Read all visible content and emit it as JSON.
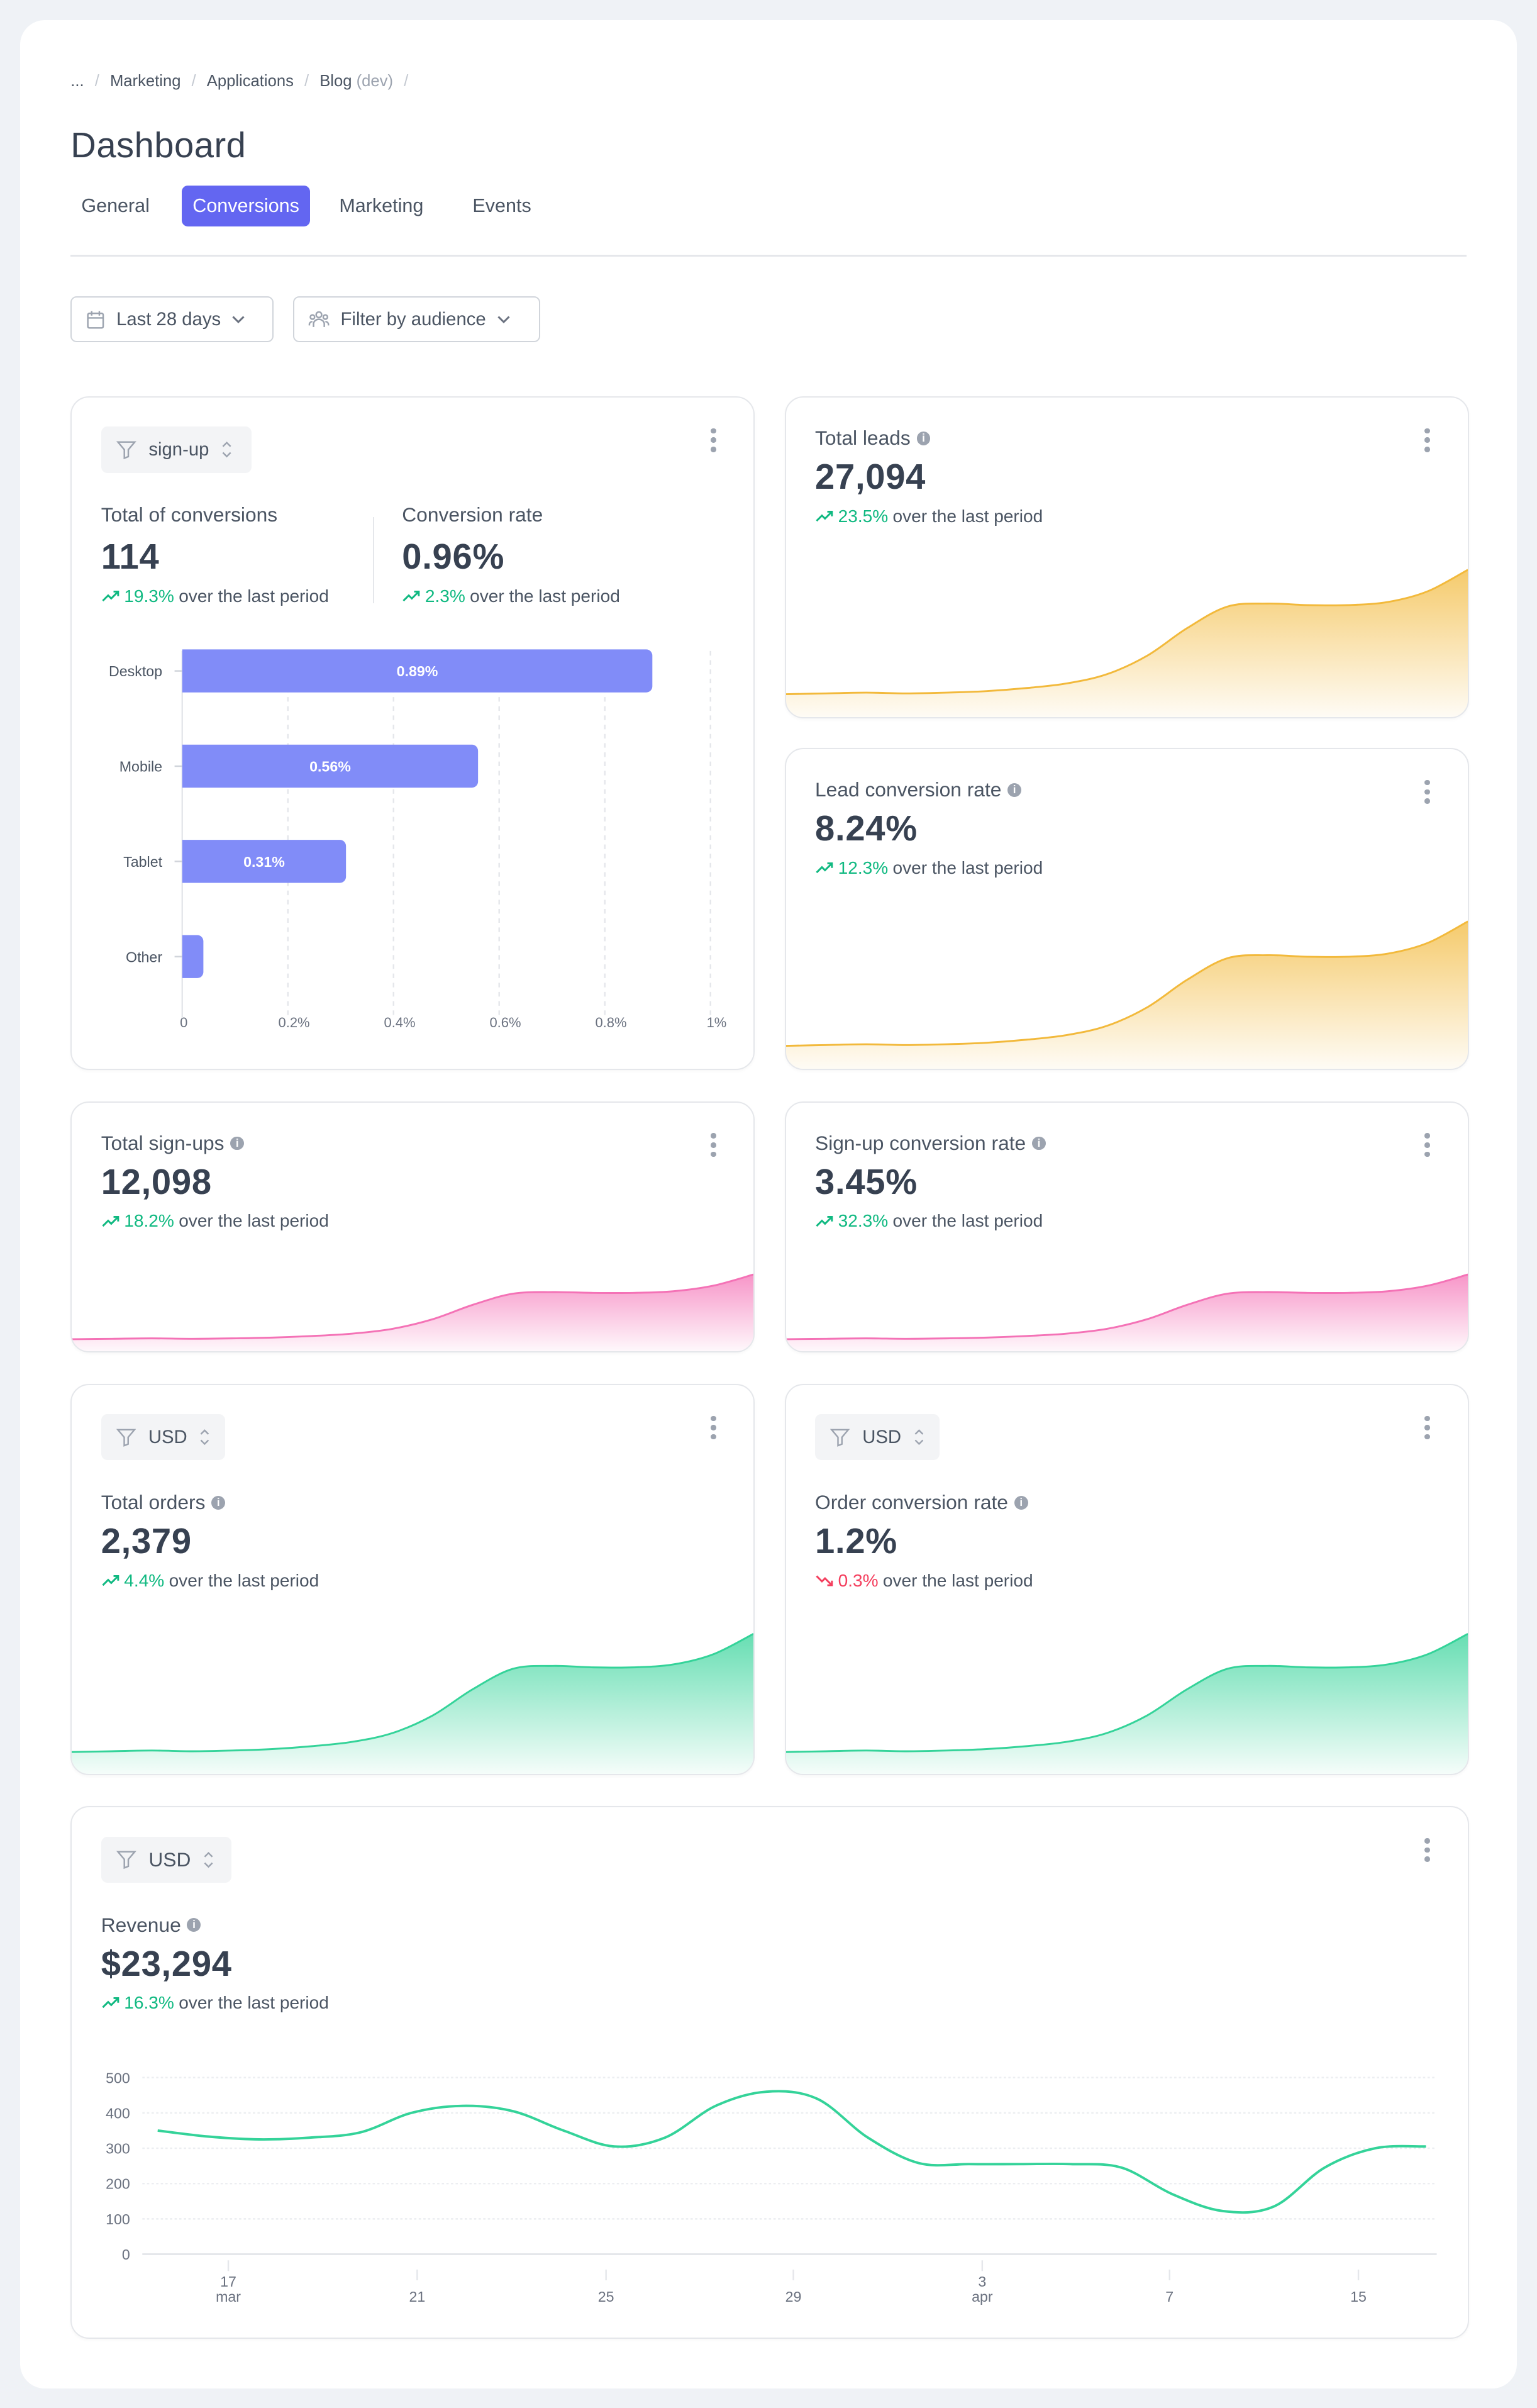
{
  "breadcrumb": {
    "items": [
      "...",
      "Marketing",
      "Applications",
      "Blog"
    ],
    "suffix": "(dev)"
  },
  "page_title": "Dashboard",
  "tabs": [
    {
      "label": "General"
    },
    {
      "label": "Conversions",
      "active": true
    },
    {
      "label": "Marketing"
    },
    {
      "label": "Events"
    }
  ],
  "filters": {
    "date_range": "Last 28 days",
    "audience": "Filter by audience"
  },
  "colors": {
    "accent": "#6366f1",
    "bar": "#818cf8",
    "positive": "#10b981",
    "negative": "#f43f5e",
    "yellow": "#f5c04a",
    "pink": "#f472b6",
    "green": "#34d399"
  },
  "conversions_card": {
    "filter": "sign-up",
    "total": {
      "label": "Total of conversions",
      "value": "114",
      "delta": "19.3%",
      "delta_text": "over the last period"
    },
    "rate": {
      "label": "Conversion rate",
      "value": "0.96%",
      "delta": "2.3%",
      "delta_text": "over the last period"
    }
  },
  "metrics": {
    "leads": {
      "label": "Total leads",
      "value": "27,094",
      "delta": "23.5%",
      "delta_text": "over the last period",
      "trend": "up"
    },
    "lead_rate": {
      "label": "Lead conversion rate",
      "value": "8.24%",
      "delta": "12.3%",
      "delta_text": "over the last period",
      "trend": "up"
    },
    "signups": {
      "label": "Total sign-ups",
      "value": "12,098",
      "delta": "18.2%",
      "delta_text": "over the last period",
      "trend": "up"
    },
    "signup_rate": {
      "label": "Sign-up conversion rate",
      "value": "3.45%",
      "delta": "32.3%",
      "delta_text": "over the last period",
      "trend": "up"
    },
    "orders": {
      "filter": "USD",
      "label": "Total orders",
      "value": "2,379",
      "delta": "4.4%",
      "delta_text": "over the last period",
      "trend": "up"
    },
    "order_rate": {
      "filter": "USD",
      "label": "Order conversion rate",
      "value": "1.2%",
      "delta": "0.3%",
      "delta_text": "over the last period",
      "trend": "down"
    },
    "revenue": {
      "filter": "USD",
      "label": "Revenue",
      "value": "$23,294",
      "delta": "16.3%",
      "delta_text": "over the last period",
      "trend": "up"
    }
  },
  "chart_data": [
    {
      "type": "bar",
      "orientation": "horizontal",
      "categories": [
        "Desktop",
        "Mobile",
        "Tablet",
        "Other"
      ],
      "values": [
        0.89,
        0.56,
        0.31,
        0.04
      ],
      "data_labels": [
        "0.89%",
        "0.56%",
        "0.31%",
        ""
      ],
      "xlim": [
        0,
        1
      ],
      "x_ticks": [
        "0",
        "0.2%",
        "0.4%",
        "0.6%",
        "0.8%",
        "1%"
      ],
      "grid": "vertical dashed"
    },
    {
      "type": "area",
      "sparkline": true,
      "values": [
        15,
        15.5,
        16,
        15.5,
        16,
        17,
        19,
        22,
        28,
        40,
        58,
        72,
        74,
        73,
        73,
        75,
        82,
        96
      ]
    },
    {
      "type": "line",
      "ylim": [
        0,
        500
      ],
      "y_ticks": [
        "0",
        "100",
        "200",
        "300",
        "400",
        "500"
      ],
      "x_ticks": [
        {
          "label": "17",
          "sub": "mar"
        },
        {
          "label": "21"
        },
        {
          "label": "25"
        },
        {
          "label": "29"
        },
        {
          "label": "3",
          "sub": "apr"
        },
        {
          "label": "7"
        },
        {
          "label": "15"
        }
      ],
      "values": [
        350,
        333,
        325,
        330,
        345,
        400,
        420,
        405,
        350,
        305,
        330,
        420,
        460,
        440,
        330,
        258,
        255,
        255,
        255,
        245,
        170,
        122,
        135,
        245,
        300,
        305
      ],
      "grid": "horizontal dotted"
    }
  ]
}
